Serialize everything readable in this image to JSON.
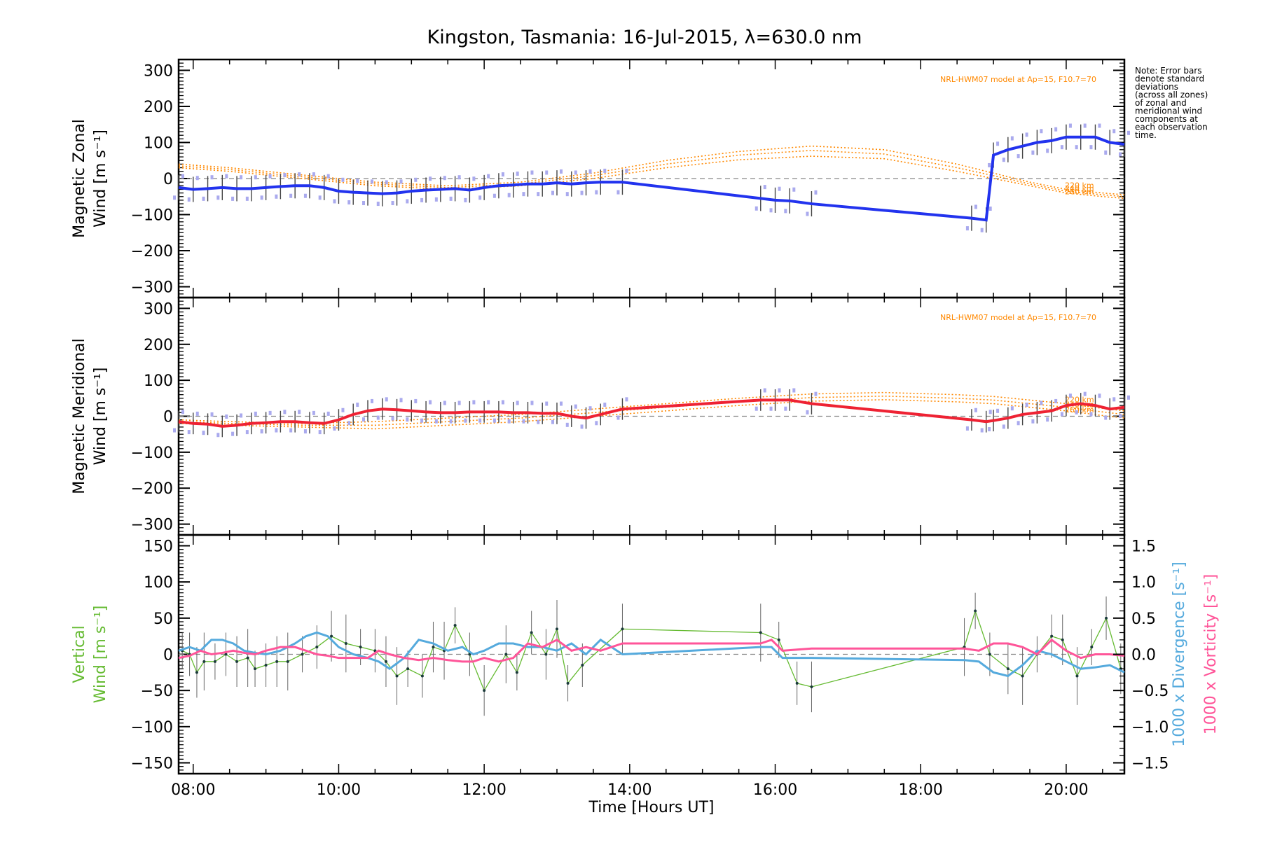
{
  "title": "Kingston, Tasmania: 16-Jul-2015, λ=630.0 nm",
  "note": [
    "Note: Error bars",
    "denote standard",
    "deviations",
    "(across all zones)",
    "of zonal and",
    "meridional wind",
    "components at",
    "each observation",
    "time."
  ],
  "colors": {
    "zonal": "#2233ee",
    "meridional": "#ee2233",
    "vertical": "#66bb33",
    "divergence": "#55aadd",
    "vorticity": "#ff5599",
    "model": "#ff8800",
    "zone": "#aaaaee"
  },
  "chart_data": [
    {
      "type": "line",
      "ylabel": [
        "Magnetic Zonal",
        "Wind [m s⁻¹]"
      ],
      "ylim": [
        -330,
        330
      ],
      "yticks": [
        "300",
        "200",
        "100",
        "0",
        "−100",
        "−200",
        "−300"
      ],
      "yticks_values": [
        300,
        200,
        100,
        0,
        -100,
        -200,
        -300
      ],
      "xlim": [
        7.8,
        20.8
      ],
      "model_label": "NRL-HWM07 model at Ap=15, F10.7=70",
      "model_heights": [
        "220 km",
        "240 km",
        "260 km"
      ],
      "series": [
        {
          "x": [
            7.8,
            8.0,
            8.2,
            8.4,
            8.6,
            8.8,
            9.0,
            9.2,
            9.4,
            9.6,
            9.8,
            10.0,
            10.2,
            10.4,
            10.6,
            10.8,
            11.0,
            11.2,
            11.4,
            11.6,
            11.8,
            12.0,
            12.2,
            12.4,
            12.6,
            12.8,
            13.0,
            13.2,
            13.4,
            13.6,
            13.9,
            15.8,
            16.0,
            16.2,
            16.5,
            18.7,
            18.9,
            19.0,
            19.2,
            19.4,
            19.6,
            19.8,
            20.0,
            20.2,
            20.4,
            20.6,
            20.8
          ],
          "values": [
            -25,
            -30,
            -28,
            -25,
            -28,
            -28,
            -25,
            -22,
            -20,
            -20,
            -25,
            -35,
            -38,
            -40,
            -42,
            -40,
            -35,
            -32,
            -30,
            -28,
            -32,
            -25,
            -20,
            -18,
            -15,
            -15,
            -12,
            -15,
            -12,
            -10,
            -10,
            -55,
            -60,
            -62,
            -70,
            -110,
            -115,
            65,
            80,
            90,
            100,
            105,
            115,
            115,
            115,
            100,
            95
          ]
        }
      ],
      "model": {
        "x": [
          7.8,
          8.5,
          9.5,
          10.5,
          11.5,
          12.5,
          13.5,
          14.5,
          15.5,
          16.5,
          17.5,
          18.5,
          19.0,
          19.5,
          20.0,
          20.5,
          20.8
        ],
        "220 km": [
          40,
          30,
          10,
          -10,
          -20,
          -10,
          15,
          50,
          75,
          90,
          80,
          40,
          15,
          -10,
          -30,
          -40,
          -45
        ],
        "240 km": [
          35,
          25,
          5,
          -15,
          -25,
          -15,
          8,
          40,
          65,
          78,
          68,
          30,
          8,
          -15,
          -35,
          -45,
          -50
        ],
        "260 km": [
          30,
          20,
          0,
          -20,
          -30,
          -20,
          0,
          30,
          52,
          62,
          55,
          20,
          0,
          -20,
          -40,
          -50,
          -55
        ]
      }
    },
    {
      "type": "line",
      "ylabel": [
        "Magnetic Meridional",
        "Wind [m s⁻¹]"
      ],
      "ylim": [
        -330,
        330
      ],
      "yticks": [
        "300",
        "200",
        "100",
        "0",
        "−100",
        "−200",
        "−300"
      ],
      "yticks_values": [
        300,
        200,
        100,
        0,
        -100,
        -200,
        -300
      ],
      "xlim": [
        7.8,
        20.8
      ],
      "model_label": "NRL-HWM07 model at Ap=15, F10.7=70",
      "model_heights": [
        "220 km",
        "240 km",
        "260 km"
      ],
      "series": [
        {
          "x": [
            7.8,
            8.0,
            8.2,
            8.4,
            8.6,
            8.8,
            9.0,
            9.2,
            9.4,
            9.6,
            9.8,
            10.0,
            10.2,
            10.4,
            10.6,
            10.8,
            11.0,
            11.2,
            11.4,
            11.6,
            11.8,
            12.0,
            12.2,
            12.4,
            12.6,
            12.8,
            13.0,
            13.2,
            13.4,
            13.6,
            13.9,
            15.8,
            16.0,
            16.2,
            16.5,
            18.7,
            18.9,
            19.0,
            19.2,
            19.4,
            19.6,
            19.8,
            20.0,
            20.2,
            20.4,
            20.6,
            20.8
          ],
          "values": [
            -15,
            -20,
            -22,
            -28,
            -25,
            -20,
            -18,
            -15,
            -15,
            -18,
            -20,
            -10,
            5,
            15,
            20,
            18,
            15,
            12,
            10,
            10,
            12,
            12,
            12,
            10,
            10,
            8,
            8,
            0,
            -5,
            5,
            20,
            45,
            45,
            45,
            35,
            -10,
            -15,
            -12,
            -5,
            5,
            10,
            15,
            30,
            35,
            30,
            20,
            25
          ]
        }
      ],
      "model": {
        "x": [
          7.8,
          8.5,
          9.5,
          10.5,
          11.5,
          12.5,
          13.5,
          14.5,
          15.5,
          16.5,
          17.5,
          18.5,
          19.0,
          19.5,
          20.0,
          20.5,
          20.8
        ],
        "220 km": [
          -10,
          -15,
          -20,
          -15,
          -5,
          5,
          20,
          35,
          50,
          62,
          66,
          60,
          55,
          45,
          35,
          22,
          15
        ],
        "240 km": [
          -15,
          -20,
          -25,
          -25,
          -15,
          -5,
          10,
          25,
          40,
          52,
          56,
          50,
          45,
          35,
          25,
          12,
          5
        ],
        "260 km": [
          -20,
          -25,
          -30,
          -35,
          -25,
          -15,
          0,
          15,
          30,
          42,
          46,
          40,
          35,
          25,
          15,
          2,
          -5
        ]
      }
    },
    {
      "type": "line",
      "ylabel": [
        "Vertical",
        "Wind [m s⁻¹]"
      ],
      "ylim": [
        -165,
        165
      ],
      "yticks": [
        "150",
        "100",
        "50",
        "0",
        "−50",
        "−100",
        "−150"
      ],
      "yticks_values": [
        150,
        100,
        50,
        0,
        -50,
        -100,
        -150
      ],
      "y2label_divergence": "1000 x Divergence [s⁻¹]",
      "y2label_vorticity": "1000 x Vorticity [s⁻¹]",
      "y2lim": [
        -1.65,
        1.65
      ],
      "y2ticks": [
        "1.5",
        "1.0",
        "0.5",
        "0.0",
        "−0.5",
        "−1.0",
        "−1.5"
      ],
      "y2ticks_values": [
        1.5,
        1.0,
        0.5,
        0.0,
        -0.5,
        -1.0,
        -1.5
      ],
      "xlim": [
        7.8,
        20.8
      ],
      "xticks": [
        "08:00",
        "10:00",
        "12:00",
        "14:00",
        "16:00",
        "18:00",
        "20:00"
      ],
      "xticks_values": [
        8,
        10,
        12,
        14,
        16,
        18,
        20
      ],
      "xlabel": "Time [Hours UT]",
      "vertical": {
        "x": [
          7.85,
          7.95,
          8.05,
          8.15,
          8.3,
          8.45,
          8.6,
          8.75,
          8.85,
          9.0,
          9.15,
          9.3,
          9.5,
          9.7,
          9.9,
          10.1,
          10.3,
          10.5,
          10.65,
          10.8,
          10.95,
          11.15,
          11.3,
          11.45,
          11.6,
          11.8,
          12.0,
          12.3,
          12.45,
          12.65,
          12.85,
          13.0,
          13.15,
          13.35,
          13.9,
          15.8,
          16.05,
          16.3,
          16.5,
          18.6,
          18.75,
          18.95,
          19.2,
          19.4,
          19.6,
          19.8,
          19.95,
          20.15,
          20.35,
          20.55,
          20.75
        ],
        "values": [
          5,
          0,
          -25,
          -10,
          -10,
          0,
          -10,
          -5,
          -20,
          -15,
          -10,
          -10,
          0,
          10,
          25,
          15,
          10,
          5,
          -10,
          -30,
          -20,
          -30,
          10,
          5,
          40,
          0,
          -50,
          0,
          -25,
          30,
          0,
          35,
          -40,
          -15,
          35,
          30,
          20,
          -40,
          -45,
          10,
          60,
          0,
          -20,
          -30,
          0,
          25,
          20,
          -30,
          10,
          50,
          -20
        ]
      },
      "divergence": {
        "x": [
          7.8,
          7.95,
          8.1,
          8.25,
          8.4,
          8.55,
          8.7,
          8.85,
          9.0,
          9.2,
          9.4,
          9.55,
          9.7,
          9.85,
          10.0,
          10.2,
          10.4,
          10.55,
          10.7,
          10.9,
          11.1,
          11.3,
          11.5,
          11.7,
          11.85,
          12.0,
          12.2,
          12.4,
          12.6,
          12.8,
          13.0,
          13.2,
          13.4,
          13.6,
          13.9,
          15.8,
          15.95,
          16.1,
          16.5,
          18.6,
          18.8,
          19.0,
          19.2,
          19.4,
          19.6,
          19.8,
          20.0,
          20.2,
          20.4,
          20.6,
          20.8
        ],
        "values": [
          0.05,
          0.1,
          0.05,
          0.2,
          0.2,
          0.15,
          0.05,
          0.02,
          0.0,
          0.05,
          0.15,
          0.25,
          0.3,
          0.25,
          0.1,
          0.0,
          -0.05,
          -0.1,
          -0.2,
          -0.05,
          0.2,
          0.15,
          0.05,
          0.1,
          0.0,
          0.05,
          0.15,
          0.15,
          0.1,
          0.1,
          0.05,
          0.15,
          0.0,
          0.2,
          0.0,
          0.1,
          0.1,
          -0.05,
          -0.05,
          -0.08,
          -0.1,
          -0.25,
          -0.3,
          -0.15,
          0.05,
          0.0,
          -0.1,
          -0.2,
          -0.18,
          -0.15,
          -0.25
        ]
      },
      "vorticity": {
        "x": [
          7.8,
          7.95,
          8.1,
          8.25,
          8.4,
          8.55,
          8.7,
          8.85,
          9.0,
          9.2,
          9.4,
          9.55,
          9.7,
          9.85,
          10.0,
          10.2,
          10.4,
          10.55,
          10.7,
          10.9,
          11.1,
          11.3,
          11.5,
          11.7,
          11.85,
          12.0,
          12.2,
          12.4,
          12.6,
          12.8,
          13.0,
          13.2,
          13.4,
          13.6,
          13.9,
          15.8,
          15.95,
          16.1,
          16.5,
          18.6,
          18.8,
          19.0,
          19.2,
          19.4,
          19.6,
          19.8,
          20.0,
          20.2,
          20.4,
          20.6,
          20.8
        ],
        "values": [
          -0.05,
          -0.02,
          0.05,
          0.0,
          0.02,
          0.05,
          0.02,
          0.0,
          0.05,
          0.1,
          0.1,
          0.05,
          0.0,
          -0.02,
          -0.05,
          -0.05,
          -0.05,
          0.05,
          0.0,
          -0.05,
          -0.08,
          -0.05,
          -0.08,
          -0.1,
          -0.1,
          -0.05,
          -0.1,
          -0.05,
          0.15,
          0.1,
          0.2,
          0.05,
          0.1,
          0.05,
          0.15,
          0.15,
          0.2,
          0.05,
          0.08,
          0.08,
          0.05,
          0.15,
          0.15,
          0.1,
          0.0,
          0.2,
          0.05,
          -0.05,
          0.0,
          0.0,
          -0.02
        ]
      }
    }
  ]
}
